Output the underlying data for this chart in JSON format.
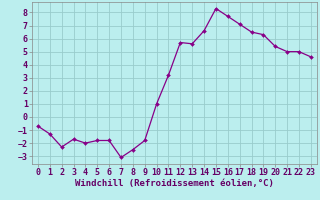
{
  "x": [
    0,
    1,
    2,
    3,
    4,
    5,
    6,
    7,
    8,
    9,
    10,
    11,
    12,
    13,
    14,
    15,
    16,
    17,
    18,
    19,
    20,
    21,
    22,
    23
  ],
  "y": [
    -0.7,
    -1.3,
    -2.3,
    -1.7,
    -2.0,
    -1.8,
    -1.8,
    -3.1,
    -2.5,
    -1.8,
    1.0,
    3.2,
    5.7,
    5.6,
    6.6,
    8.3,
    7.7,
    7.1,
    6.5,
    6.3,
    5.4,
    5.0,
    5.0,
    4.6
  ],
  "line_color": "#880088",
  "marker": "D",
  "marker_size": 2.0,
  "line_width": 0.9,
  "bg_color": "#bbeeee",
  "grid_color": "#99cccc",
  "xlabel": "Windchill (Refroidissement éolien,°C)",
  "xlabel_color": "#660066",
  "xlabel_fontsize": 6.5,
  "tick_label_color": "#660066",
  "tick_fontsize": 6.0,
  "ylim": [
    -3.6,
    8.8
  ],
  "xlim": [
    -0.5,
    23.5
  ],
  "yticks": [
    -3,
    -2,
    -1,
    0,
    1,
    2,
    3,
    4,
    5,
    6,
    7,
    8
  ],
  "xticks": [
    0,
    1,
    2,
    3,
    4,
    5,
    6,
    7,
    8,
    9,
    10,
    11,
    12,
    13,
    14,
    15,
    16,
    17,
    18,
    19,
    20,
    21,
    22,
    23
  ],
  "spine_color": "#888888"
}
